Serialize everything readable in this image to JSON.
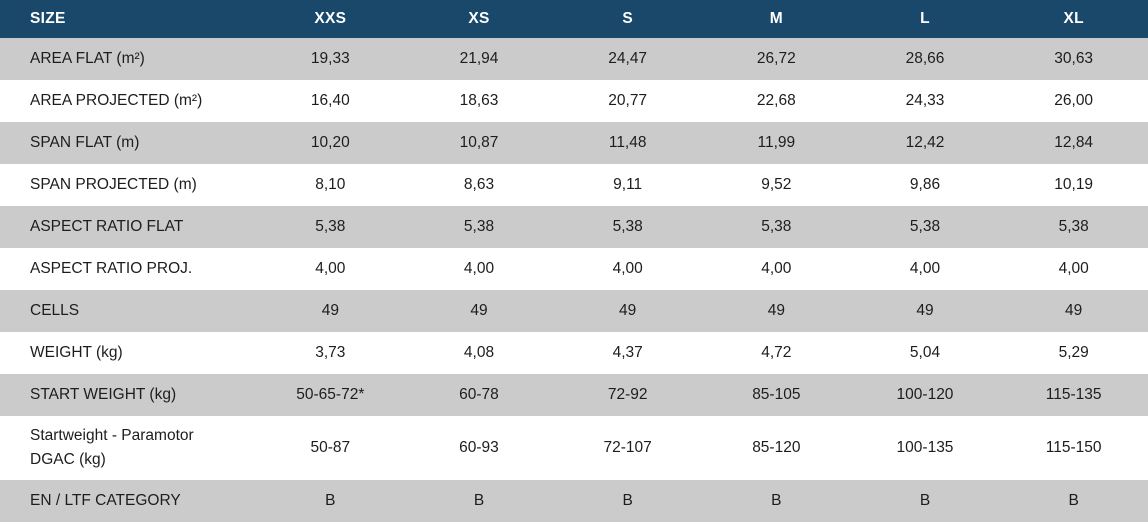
{
  "table": {
    "header": {
      "size_label": "SIZE",
      "columns": [
        "XXS",
        "XS",
        "S",
        "M",
        "L",
        "XL"
      ]
    },
    "rows": [
      {
        "label": "AREA FLAT (m²)",
        "shaded": true,
        "tall": false,
        "values": [
          "19,33",
          "21,94",
          "24,47",
          "26,72",
          "28,66",
          "30,63"
        ]
      },
      {
        "label": "AREA PROJECTED (m²)",
        "shaded": false,
        "tall": false,
        "values": [
          "16,40",
          "18,63",
          "20,77",
          "22,68",
          "24,33",
          "26,00"
        ]
      },
      {
        "label": "SPAN FLAT (m)",
        "shaded": true,
        "tall": false,
        "values": [
          "10,20",
          "10,87",
          "11,48",
          "11,99",
          "12,42",
          "12,84"
        ]
      },
      {
        "label": "SPAN PROJECTED (m)",
        "shaded": false,
        "tall": false,
        "values": [
          "8,10",
          "8,63",
          "9,11",
          "9,52",
          "9,86",
          "10,19"
        ]
      },
      {
        "label": "ASPECT RATIO FLAT",
        "shaded": true,
        "tall": false,
        "values": [
          "5,38",
          "5,38",
          "5,38",
          "5,38",
          "5,38",
          "5,38"
        ]
      },
      {
        "label": "ASPECT RATIO PROJ.",
        "shaded": false,
        "tall": false,
        "values": [
          "4,00",
          "4,00",
          "4,00",
          "4,00",
          "4,00",
          "4,00"
        ]
      },
      {
        "label": "CELLS",
        "shaded": true,
        "tall": false,
        "values": [
          "49",
          "49",
          "49",
          "49",
          "49",
          "49"
        ]
      },
      {
        "label": "WEIGHT (kg)",
        "shaded": false,
        "tall": false,
        "values": [
          "3,73",
          "4,08",
          "4,37",
          "4,72",
          "5,04",
          "5,29"
        ]
      },
      {
        "label": "START WEIGHT (kg)",
        "shaded": true,
        "tall": false,
        "values": [
          "50-65-72*",
          "60-78",
          "72-92",
          "85-105",
          "100-120",
          "115-135"
        ]
      },
      {
        "label": "Startweight - Paramotor DGAC (kg)",
        "shaded": false,
        "tall": true,
        "values": [
          "50-87",
          "60-93",
          "72-107",
          "85-120",
          "100-135",
          "115-150"
        ]
      },
      {
        "label": "EN / LTF CATEGORY",
        "shaded": true,
        "tall": false,
        "values": [
          "B",
          "B",
          "B",
          "B",
          "B",
          "B"
        ]
      }
    ],
    "colors": {
      "header_bg": "#19486A",
      "header_text": "#FFFFFF",
      "shaded_row_bg": "#CBCBCB",
      "plain_row_bg": "#FFFFFF",
      "text": "#1D1D1B"
    }
  }
}
